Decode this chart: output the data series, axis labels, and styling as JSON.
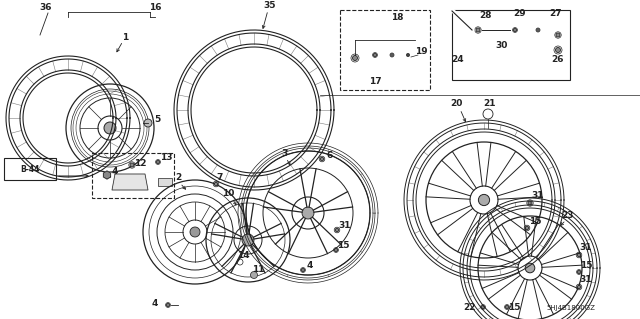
{
  "bg_color": "#f5f5f0",
  "line_color": "#222222",
  "fig_width": 6.4,
  "fig_height": 3.19,
  "dpi": 100,
  "footer_text": "5HJ4B1800GZ",
  "label_fs": 6.5,
  "bold_fs": 7
}
